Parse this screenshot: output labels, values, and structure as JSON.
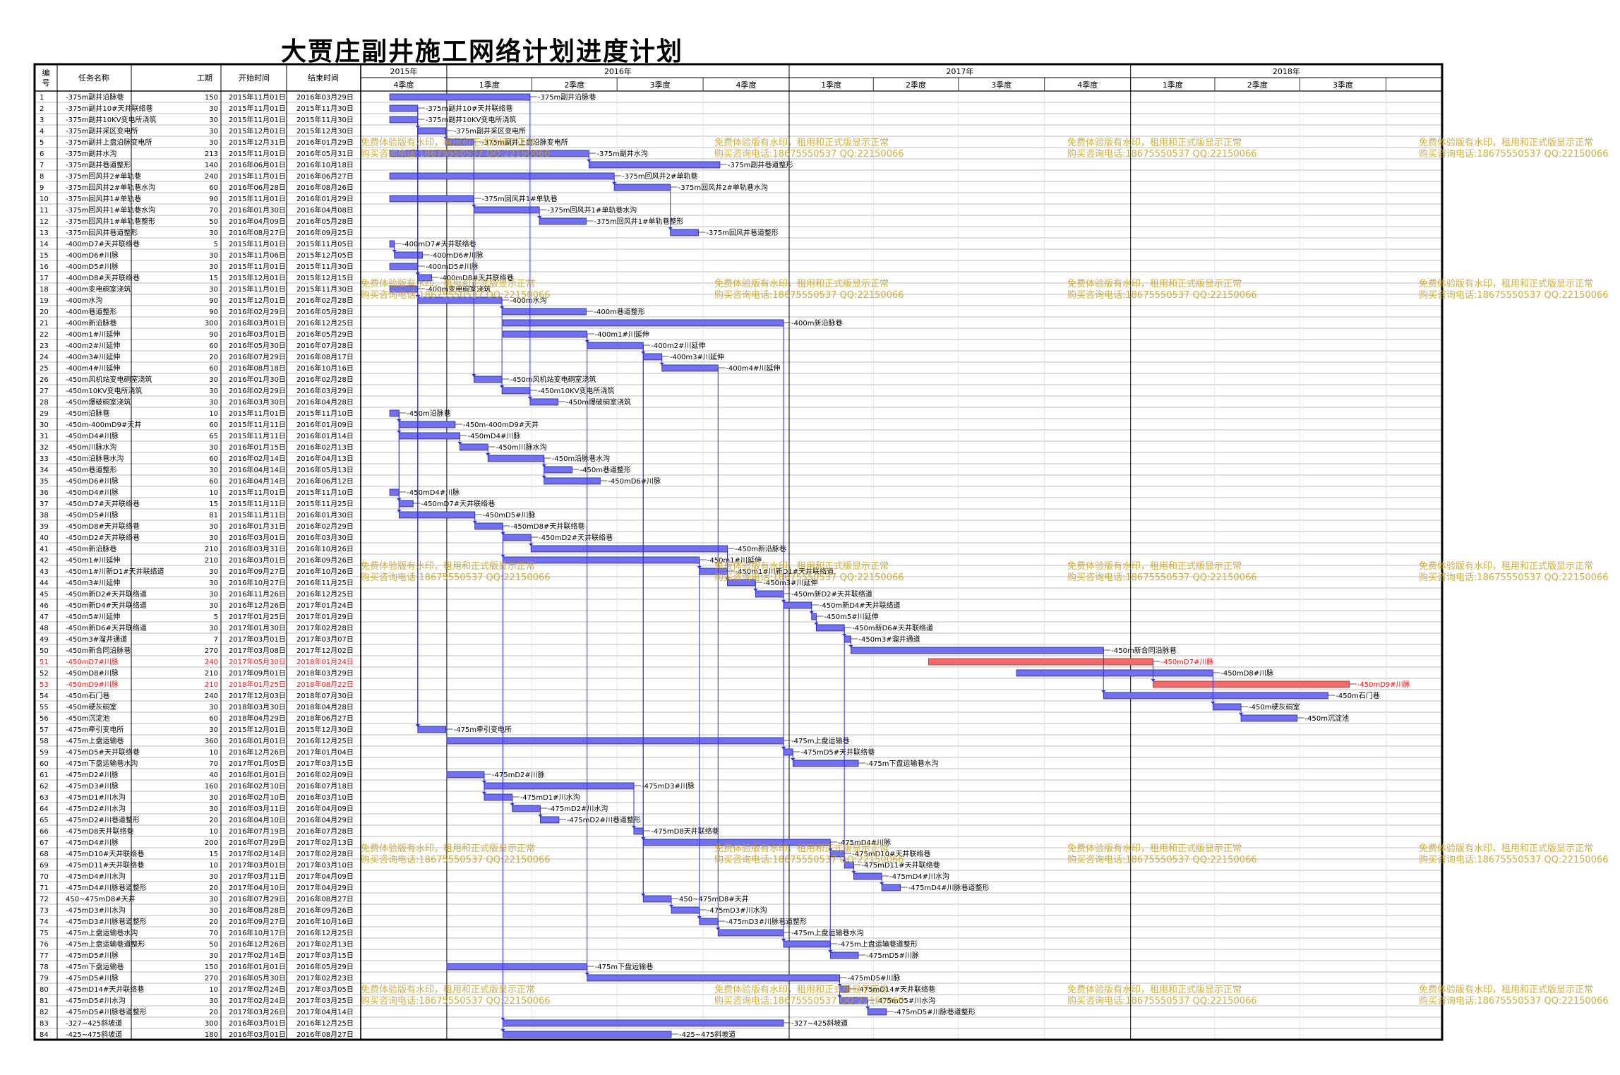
{
  "title": "大贾庄副井施工网络计划进度计划",
  "headers": {
    "id": "编号",
    "name": "任务名称",
    "duration": "工期",
    "start": "开始时间",
    "end": "结束时间"
  },
  "colors": {
    "normal": "#7070f0",
    "critical": "#f06b6b",
    "critical_text": "#e02020",
    "link": "#3030e0",
    "grid": "#9a9a9a",
    "watermark": "#c8a020"
  },
  "timeline": {
    "years": [
      {
        "label": "2015年",
        "start": "2015-10-01",
        "end": "2015-12-31"
      },
      {
        "label": "2016年",
        "start": "2016-01-01",
        "end": "2016-12-31"
      },
      {
        "label": "2017年",
        "start": "2017-01-01",
        "end": "2017-12-31"
      },
      {
        "label": "2018年",
        "start": "2018-01-01",
        "end": "2018-11-30"
      }
    ],
    "quarters": [
      {
        "label": "4季度",
        "start": "2015-10-01",
        "end": "2015-12-31"
      },
      {
        "label": "1季度",
        "start": "2016-01-01",
        "end": "2016-03-31"
      },
      {
        "label": "2季度",
        "start": "2016-04-01",
        "end": "2016-06-30"
      },
      {
        "label": "3季度",
        "start": "2016-07-01",
        "end": "2016-09-30"
      },
      {
        "label": "4季度",
        "start": "2016-10-01",
        "end": "2016-12-31"
      },
      {
        "label": "1季度",
        "start": "2017-01-01",
        "end": "2017-03-31"
      },
      {
        "label": "2季度",
        "start": "2017-04-01",
        "end": "2017-06-30"
      },
      {
        "label": "3季度",
        "start": "2017-07-01",
        "end": "2017-09-30"
      },
      {
        "label": "4季度",
        "start": "2017-10-01",
        "end": "2017-12-31"
      },
      {
        "label": "1季度",
        "start": "2018-01-01",
        "end": "2018-03-31"
      },
      {
        "label": "2季度",
        "start": "2018-04-01",
        "end": "2018-06-30"
      },
      {
        "label": "3季度",
        "start": "2018-07-01",
        "end": "2018-09-30"
      },
      {
        "label": "",
        "start": "2018-10-01",
        "end": "2018-11-30"
      }
    ]
  },
  "watermark": {
    "line1": "免费体验版有水印，租用和正式版显示正常",
    "line2": "购买咨询电话:18675550537 QQ:22150066"
  },
  "chart_data": {
    "type": "gantt",
    "title": "大贾庄副井施工网络计划进度计划",
    "tasks": [
      {
        "id": 1,
        "name": "-375m副井沿脉巷",
        "duration": 150,
        "start": "2015年11月01日",
        "end": "2016年03月29日",
        "critical": false
      },
      {
        "id": 2,
        "name": "-375m副井10#天井联络巷",
        "duration": 30,
        "start": "2015年11月01日",
        "end": "2015年11月30日",
        "critical": false
      },
      {
        "id": 3,
        "name": "-375m副井10KV变电所浇筑",
        "duration": 30,
        "start": "2015年11月01日",
        "end": "2015年11月30日",
        "critical": false
      },
      {
        "id": 4,
        "name": "-375m副井采区变电所",
        "duration": 30,
        "start": "2015年12月01日",
        "end": "2015年12月30日",
        "critical": false
      },
      {
        "id": 5,
        "name": "-375m副井上盘沿脉变电所",
        "duration": 30,
        "start": "2015年12月31日",
        "end": "2016年01月29日",
        "critical": false
      },
      {
        "id": 6,
        "name": "-375m副井水沟",
        "duration": 213,
        "start": "2015年11月01日",
        "end": "2016年05月31日",
        "critical": false
      },
      {
        "id": 7,
        "name": "-375m副井巷道整形",
        "duration": 140,
        "start": "2016年06月01日",
        "end": "2016年10月18日",
        "critical": false
      },
      {
        "id": 8,
        "name": "-375m回风井2#单轨巷",
        "duration": 240,
        "start": "2015年11月01日",
        "end": "2016年06月27日",
        "critical": false
      },
      {
        "id": 9,
        "name": "-375m回风井2#单轨巷水沟",
        "duration": 60,
        "start": "2016年06月28日",
        "end": "2016年08月26日",
        "critical": false
      },
      {
        "id": 10,
        "name": "-375m回风井1#单轨巷",
        "duration": 90,
        "start": "2015年11月01日",
        "end": "2016年01月29日",
        "critical": false
      },
      {
        "id": 11,
        "name": "-375m回风井1#单轨巷水沟",
        "duration": 70,
        "start": "2016年01月30日",
        "end": "2016年04月08日",
        "critical": false
      },
      {
        "id": 12,
        "name": "-375m回风井1#单轨巷整形",
        "duration": 50,
        "start": "2016年04月09日",
        "end": "2016年05月28日",
        "critical": false
      },
      {
        "id": 13,
        "name": "-375m回风井巷道整形",
        "duration": 30,
        "start": "2016年08月27日",
        "end": "2016年09月25日",
        "critical": false
      },
      {
        "id": 14,
        "name": "-400mD7#天井联络巷",
        "duration": 5,
        "start": "2015年11月01日",
        "end": "2015年11月05日",
        "critical": false
      },
      {
        "id": 15,
        "name": "-400mD6#川脉",
        "duration": 30,
        "start": "2015年11月06日",
        "end": "2015年12月05日",
        "critical": false
      },
      {
        "id": 16,
        "name": "-400mD5#川脉",
        "duration": 30,
        "start": "2015年11月01日",
        "end": "2015年11月30日",
        "critical": false
      },
      {
        "id": 17,
        "name": "-400mD8#天井联络巷",
        "duration": 15,
        "start": "2015年12月01日",
        "end": "2015年12月15日",
        "critical": false
      },
      {
        "id": 18,
        "name": "-400m变电硐室浇筑",
        "duration": 30,
        "start": "2015年11月01日",
        "end": "2015年11月30日",
        "critical": false
      },
      {
        "id": 19,
        "name": "-400m水沟",
        "duration": 90,
        "start": "2015年12月01日",
        "end": "2016年02月28日",
        "critical": false
      },
      {
        "id": 20,
        "name": "-400m巷道整形",
        "duration": 90,
        "start": "2016年02月29日",
        "end": "2016年05月28日",
        "critical": false
      },
      {
        "id": 21,
        "name": "-400m新沿脉巷",
        "duration": 300,
        "start": "2016年03月01日",
        "end": "2016年12月25日",
        "critical": false
      },
      {
        "id": 22,
        "name": "-400m1#川延伸",
        "duration": 90,
        "start": "2016年03月01日",
        "end": "2016年05月29日",
        "critical": false
      },
      {
        "id": 23,
        "name": "-400m2#川延伸",
        "duration": 60,
        "start": "2016年05月30日",
        "end": "2016年07月28日",
        "critical": false
      },
      {
        "id": 24,
        "name": "-400m3#川延伸",
        "duration": 20,
        "start": "2016年07月29日",
        "end": "2016年08月17日",
        "critical": false
      },
      {
        "id": 25,
        "name": "-400m4#川延伸",
        "duration": 60,
        "start": "2016年08月18日",
        "end": "2016年10月16日",
        "critical": false
      },
      {
        "id": 26,
        "name": "-450m风机站变电硐室浇筑",
        "duration": 30,
        "start": "2016年01月30日",
        "end": "2016年02月28日",
        "critical": false
      },
      {
        "id": 27,
        "name": "-450m10KV变电所浇筑",
        "duration": 30,
        "start": "2016年02月29日",
        "end": "2016年03月29日",
        "critical": false
      },
      {
        "id": 28,
        "name": "-450m爆破硐室浇筑",
        "duration": 30,
        "start": "2016年03月30日",
        "end": "2016年04月28日",
        "critical": false
      },
      {
        "id": 29,
        "name": "-450m沿脉巷",
        "duration": 10,
        "start": "2015年11月01日",
        "end": "2015年11月10日",
        "critical": false
      },
      {
        "id": 30,
        "name": "-450m-400mD9#天井",
        "duration": 60,
        "start": "2015年11月11日",
        "end": "2016年01月09日",
        "critical": false
      },
      {
        "id": 31,
        "name": "-450mD4#川脉",
        "duration": 65,
        "start": "2015年11月11日",
        "end": "2016年01月14日",
        "critical": false
      },
      {
        "id": 32,
        "name": "-450m川脉水沟",
        "duration": 30,
        "start": "2016年01月15日",
        "end": "2016年02月13日",
        "critical": false
      },
      {
        "id": 33,
        "name": "-450m沿脉巷水沟",
        "duration": 60,
        "start": "2016年02月14日",
        "end": "2016年04月13日",
        "critical": false
      },
      {
        "id": 34,
        "name": "-450m巷道整形",
        "duration": 30,
        "start": "2016年04月14日",
        "end": "2016年05月13日",
        "critical": false
      },
      {
        "id": 35,
        "name": "-450mD6#川脉",
        "duration": 60,
        "start": "2016年04月14日",
        "end": "2016年06月12日",
        "critical": false
      },
      {
        "id": 36,
        "name": "-450mD4#川脉",
        "duration": 10,
        "start": "2015年11月01日",
        "end": "2015年11月10日",
        "critical": false
      },
      {
        "id": 37,
        "name": "-450mD7#天井联络巷",
        "duration": 15,
        "start": "2015年11月11日",
        "end": "2015年11月25日",
        "critical": false
      },
      {
        "id": 38,
        "name": "-450mD5#川脉",
        "duration": 81,
        "start": "2015年11月11日",
        "end": "2016年01月30日",
        "critical": false
      },
      {
        "id": 39,
        "name": "-450mD8#天井联络巷",
        "duration": 30,
        "start": "2016年01月31日",
        "end": "2016年02月29日",
        "critical": false
      },
      {
        "id": 40,
        "name": "-450mD2#天井联络巷",
        "duration": 30,
        "start": "2016年03月01日",
        "end": "2016年03月30日",
        "critical": false
      },
      {
        "id": 41,
        "name": "-450m新沿脉巷",
        "duration": 210,
        "start": "2016年03月31日",
        "end": "2016年10月26日",
        "critical": false
      },
      {
        "id": 42,
        "name": "-450m1#川延伸",
        "duration": 210,
        "start": "2016年03月01日",
        "end": "2016年09月26日",
        "critical": false
      },
      {
        "id": 43,
        "name": "-450m1#川新D1#天井联络道",
        "duration": 30,
        "start": "2016年09月27日",
        "end": "2016年10月26日",
        "critical": false
      },
      {
        "id": 44,
        "name": "-450m3#川延伸",
        "duration": 30,
        "start": "2016年10月27日",
        "end": "2016年11月25日",
        "critical": false
      },
      {
        "id": 45,
        "name": "-450m新D2#天井联络道",
        "duration": 30,
        "start": "2016年11月26日",
        "end": "2016年12月25日",
        "critical": false
      },
      {
        "id": 46,
        "name": "-450m新D4#天井联络道",
        "duration": 30,
        "start": "2016年12月26日",
        "end": "2017年01月24日",
        "critical": false
      },
      {
        "id": 47,
        "name": "-450m5#川延伸",
        "duration": 5,
        "start": "2017年01月25日",
        "end": "2017年01月29日",
        "critical": false
      },
      {
        "id": 48,
        "name": "-450m新D6#天井联络道",
        "duration": 30,
        "start": "2017年01月30日",
        "end": "2017年02月28日",
        "critical": false
      },
      {
        "id": 49,
        "name": "-450m3#溜井通道",
        "duration": 7,
        "start": "2017年03月01日",
        "end": "2017年03月07日",
        "critical": false
      },
      {
        "id": 50,
        "name": "-450m新合同沿脉巷",
        "duration": 270,
        "start": "2017年03月08日",
        "end": "2017年12月02日",
        "critical": false
      },
      {
        "id": 51,
        "name": "-450mD7#川脉",
        "duration": 240,
        "start": "2017年05月30日",
        "end": "2018年01月24日",
        "critical": true
      },
      {
        "id": 52,
        "name": "-450mD8#川脉",
        "duration": 210,
        "start": "2017年09月01日",
        "end": "2018年03月29日",
        "critical": false
      },
      {
        "id": 53,
        "name": "-450mD9#川脉",
        "duration": 210,
        "start": "2018年01月25日",
        "end": "2018年08月22日",
        "critical": true
      },
      {
        "id": 54,
        "name": "-450m石门巷",
        "duration": 240,
        "start": "2017年12月03日",
        "end": "2018年07月30日",
        "critical": false
      },
      {
        "id": 55,
        "name": "-450m硬灰硐室",
        "duration": 30,
        "start": "2018年03月30日",
        "end": "2018年04月28日",
        "critical": false
      },
      {
        "id": 56,
        "name": "-450m沉淀池",
        "duration": 60,
        "start": "2018年04月29日",
        "end": "2018年06月27日",
        "critical": false
      },
      {
        "id": 57,
        "name": "-475m牵引变电所",
        "duration": 30,
        "start": "2015年12月01日",
        "end": "2015年12月30日",
        "critical": false
      },
      {
        "id": 58,
        "name": "-475m上盘运输巷",
        "duration": 360,
        "start": "2016年01月01日",
        "end": "2016年12月25日",
        "critical": false
      },
      {
        "id": 59,
        "name": "-475mD5#天井联络巷",
        "duration": 10,
        "start": "2016年12月26日",
        "end": "2017年01月04日",
        "critical": false
      },
      {
        "id": 60,
        "name": "-475m下盘运输巷水沟",
        "duration": 70,
        "start": "2017年01月05日",
        "end": "2017年03月15日",
        "critical": false
      },
      {
        "id": 61,
        "name": "-475mD2#川脉",
        "duration": 40,
        "start": "2016年01月01日",
        "end": "2016年02月09日",
        "critical": false
      },
      {
        "id": 62,
        "name": "-475mD3#川脉",
        "duration": 160,
        "start": "2016年02月10日",
        "end": "2016年07月18日",
        "critical": false
      },
      {
        "id": 63,
        "name": "-475mD1#川水沟",
        "duration": 30,
        "start": "2016年02月10日",
        "end": "2016年03月10日",
        "critical": false
      },
      {
        "id": 64,
        "name": "-475mD2#川水沟",
        "duration": 30,
        "start": "2016年03月11日",
        "end": "2016年04月09日",
        "critical": false
      },
      {
        "id": 65,
        "name": "-475mD2#川巷道整形",
        "duration": 20,
        "start": "2016年04月10日",
        "end": "2016年04月29日",
        "critical": false
      },
      {
        "id": 66,
        "name": "-475mD8天井联络巷",
        "duration": 10,
        "start": "2016年07月19日",
        "end": "2016年07月28日",
        "critical": false
      },
      {
        "id": 67,
        "name": "-475mD4#川脉",
        "duration": 200,
        "start": "2016年07月29日",
        "end": "2017年02月13日",
        "critical": false
      },
      {
        "id": 68,
        "name": "-475mD10#天井联络巷",
        "duration": 15,
        "start": "2017年02月14日",
        "end": "2017年02月28日",
        "critical": false
      },
      {
        "id": 69,
        "name": "-475mD11#天井联络巷",
        "duration": 10,
        "start": "2017年03月01日",
        "end": "2017年03月10日",
        "critical": false
      },
      {
        "id": 70,
        "name": "-475mD4#川水沟",
        "duration": 30,
        "start": "2017年03月11日",
        "end": "2017年04月09日",
        "critical": false
      },
      {
        "id": 71,
        "name": "-475mD4#川脉巷道整形",
        "duration": 20,
        "start": "2017年04月10日",
        "end": "2017年04月29日",
        "critical": false
      },
      {
        "id": 72,
        "name": "450~475mD8#天井",
        "duration": 30,
        "start": "2016年07月29日",
        "end": "2016年08月27日",
        "critical": false
      },
      {
        "id": 73,
        "name": "-475mD3#川水沟",
        "duration": 30,
        "start": "2016年08月28日",
        "end": "2016年09月26日",
        "critical": false
      },
      {
        "id": 74,
        "name": "-475mD3#川脉巷道整形",
        "duration": 20,
        "start": "2016年09月27日",
        "end": "2016年10月16日",
        "critical": false
      },
      {
        "id": 75,
        "name": "-475m上盘运输巷水沟",
        "duration": 70,
        "start": "2016年10月17日",
        "end": "2016年12月25日",
        "critical": false
      },
      {
        "id": 76,
        "name": "-475m上盘运输巷道整形",
        "duration": 50,
        "start": "2016年12月26日",
        "end": "2017年02月13日",
        "critical": false
      },
      {
        "id": 77,
        "name": "-475mD5#川脉",
        "duration": 30,
        "start": "2017年02月14日",
        "end": "2017年03月15日",
        "critical": false
      },
      {
        "id": 78,
        "name": "-475m下盘运输巷",
        "duration": 150,
        "start": "2016年01月01日",
        "end": "2016年05月29日",
        "critical": false
      },
      {
        "id": 79,
        "name": "-475mD5#川脉",
        "duration": 270,
        "start": "2016年05月30日",
        "end": "2017年02月23日",
        "critical": false
      },
      {
        "id": 80,
        "name": "-475mD14#天井联络巷",
        "duration": 10,
        "start": "2017年02月24日",
        "end": "2017年03月05日",
        "critical": false
      },
      {
        "id": 81,
        "name": "-475mD5#川水沟",
        "duration": 30,
        "start": "2017年02月24日",
        "end": "2017年03月25日",
        "critical": false
      },
      {
        "id": 82,
        "name": "-475mD5#川脉巷道整形",
        "duration": 20,
        "start": "2017年03月26日",
        "end": "2017年04月14日",
        "critical": false
      },
      {
        "id": 83,
        "name": "-327~425斜坡道",
        "duration": 300,
        "start": "2016年03月01日",
        "end": "2016年12月25日",
        "critical": false
      },
      {
        "id": 84,
        "name": "-425~475斜坡道",
        "duration": 180,
        "start": "2016年03月01日",
        "end": "2016年08月27日",
        "critical": false
      }
    ]
  }
}
